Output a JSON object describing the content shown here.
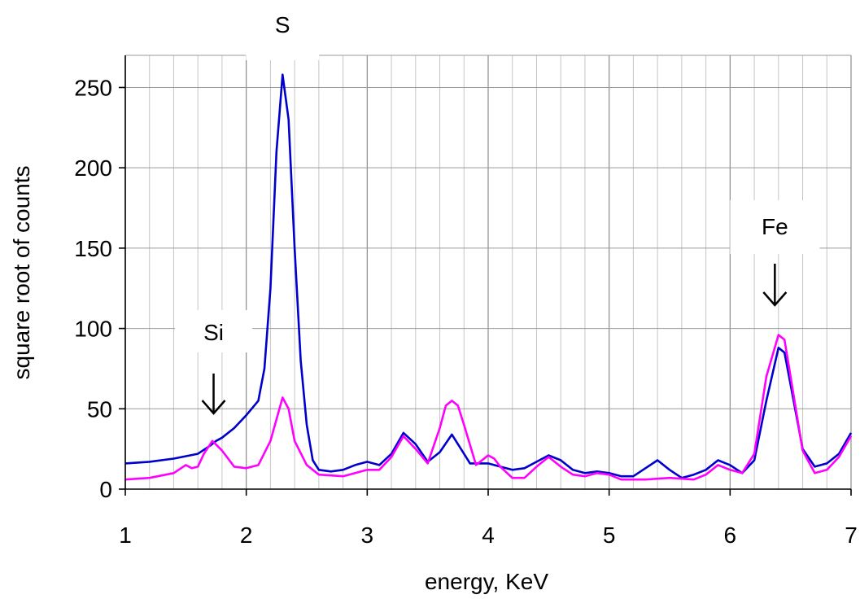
{
  "chart_data": {
    "type": "line",
    "title": "",
    "xlabel": "energy,  KeV",
    "ylabel": "square root of counts",
    "xlim": [
      1,
      7
    ],
    "ylim": [
      0,
      270
    ],
    "x_ticks": [
      "1",
      "2",
      "3",
      "4",
      "5",
      "6",
      "7"
    ],
    "y_ticks": [
      "0",
      "50",
      "100",
      "150",
      "200",
      "250"
    ],
    "grid": true,
    "legend": "none",
    "series": [
      {
        "color": "#0000cc",
        "points": [
          [
            1.0,
            16
          ],
          [
            1.2,
            17
          ],
          [
            1.4,
            19
          ],
          [
            1.6,
            22
          ],
          [
            1.7,
            27
          ],
          [
            1.75,
            30
          ],
          [
            1.8,
            32
          ],
          [
            1.9,
            38
          ],
          [
            2.0,
            46
          ],
          [
            2.1,
            55
          ],
          [
            2.15,
            75
          ],
          [
            2.2,
            125
          ],
          [
            2.25,
            210
          ],
          [
            2.3,
            258
          ],
          [
            2.35,
            230
          ],
          [
            2.4,
            150
          ],
          [
            2.45,
            80
          ],
          [
            2.5,
            40
          ],
          [
            2.55,
            18
          ],
          [
            2.6,
            12
          ],
          [
            2.7,
            11
          ],
          [
            2.8,
            12
          ],
          [
            2.9,
            15
          ],
          [
            3.0,
            17
          ],
          [
            3.1,
            15
          ],
          [
            3.2,
            22
          ],
          [
            3.3,
            35
          ],
          [
            3.4,
            28
          ],
          [
            3.5,
            17
          ],
          [
            3.6,
            23
          ],
          [
            3.7,
            34
          ],
          [
            3.8,
            22
          ],
          [
            3.85,
            16
          ],
          [
            4.0,
            16
          ],
          [
            4.1,
            14
          ],
          [
            4.2,
            12
          ],
          [
            4.3,
            13
          ],
          [
            4.4,
            17
          ],
          [
            4.5,
            21
          ],
          [
            4.6,
            18
          ],
          [
            4.7,
            12
          ],
          [
            4.8,
            10
          ],
          [
            4.9,
            11
          ],
          [
            5.0,
            10
          ],
          [
            5.1,
            8
          ],
          [
            5.2,
            8
          ],
          [
            5.3,
            13
          ],
          [
            5.4,
            18
          ],
          [
            5.5,
            12
          ],
          [
            5.6,
            7
          ],
          [
            5.7,
            9
          ],
          [
            5.8,
            12
          ],
          [
            5.9,
            18
          ],
          [
            6.0,
            15
          ],
          [
            6.1,
            10
          ],
          [
            6.2,
            18
          ],
          [
            6.3,
            55
          ],
          [
            6.4,
            88
          ],
          [
            6.45,
            85
          ],
          [
            6.5,
            65
          ],
          [
            6.6,
            25
          ],
          [
            6.7,
            14
          ],
          [
            6.8,
            16
          ],
          [
            6.9,
            22
          ],
          [
            7.0,
            35
          ]
        ]
      },
      {
        "color": "#ff00ff",
        "points": [
          [
            1.0,
            6
          ],
          [
            1.2,
            7
          ],
          [
            1.4,
            10
          ],
          [
            1.5,
            15
          ],
          [
            1.55,
            13
          ],
          [
            1.6,
            14
          ],
          [
            1.65,
            22
          ],
          [
            1.72,
            30
          ],
          [
            1.8,
            24
          ],
          [
            1.9,
            14
          ],
          [
            2.0,
            13
          ],
          [
            2.1,
            15
          ],
          [
            2.2,
            30
          ],
          [
            2.3,
            57
          ],
          [
            2.35,
            50
          ],
          [
            2.4,
            30
          ],
          [
            2.5,
            15
          ],
          [
            2.6,
            9
          ],
          [
            2.8,
            8
          ],
          [
            2.9,
            10
          ],
          [
            3.0,
            12
          ],
          [
            3.1,
            12
          ],
          [
            3.2,
            20
          ],
          [
            3.3,
            33
          ],
          [
            3.4,
            25
          ],
          [
            3.5,
            16
          ],
          [
            3.6,
            38
          ],
          [
            3.65,
            52
          ],
          [
            3.7,
            55
          ],
          [
            3.75,
            52
          ],
          [
            3.8,
            40
          ],
          [
            3.9,
            15
          ],
          [
            4.0,
            21
          ],
          [
            4.05,
            19
          ],
          [
            4.1,
            14
          ],
          [
            4.2,
            7
          ],
          [
            4.3,
            7
          ],
          [
            4.4,
            14
          ],
          [
            4.5,
            20
          ],
          [
            4.6,
            14
          ],
          [
            4.7,
            9
          ],
          [
            4.8,
            8
          ],
          [
            4.9,
            10
          ],
          [
            5.0,
            9
          ],
          [
            5.1,
            6
          ],
          [
            5.3,
            6
          ],
          [
            5.5,
            7
          ],
          [
            5.7,
            6
          ],
          [
            5.8,
            9
          ],
          [
            5.9,
            15
          ],
          [
            6.0,
            12
          ],
          [
            6.1,
            10
          ],
          [
            6.2,
            22
          ],
          [
            6.3,
            70
          ],
          [
            6.4,
            96
          ],
          [
            6.45,
            93
          ],
          [
            6.5,
            70
          ],
          [
            6.6,
            24
          ],
          [
            6.7,
            10
          ],
          [
            6.8,
            12
          ],
          [
            6.9,
            20
          ],
          [
            7.0,
            33
          ]
        ]
      }
    ],
    "annotations": [
      {
        "label": "S",
        "x": 2.3
      },
      {
        "label": "Si",
        "x": 1.73
      },
      {
        "label": "Fe",
        "x": 6.37
      }
    ]
  }
}
